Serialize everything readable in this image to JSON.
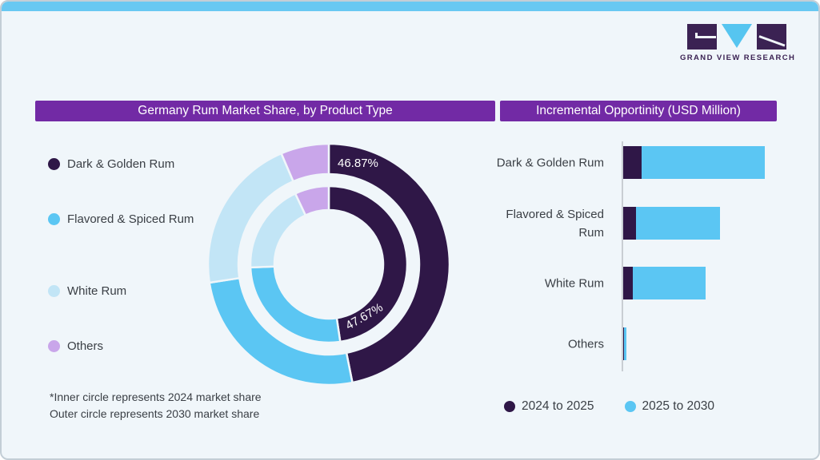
{
  "page": {
    "background": "#f0f6fa",
    "top_strip_color": "#68c8f2",
    "accent_purple": "#722aa5",
    "text_color": "#3a3f45"
  },
  "logo": {
    "text": "GRAND VIEW RESEARCH",
    "dark_color": "#3b2253",
    "blue_color": "#56c5f0"
  },
  "left_panel": {
    "title": "Germany Rum Market Share, by Product Type",
    "legend": [
      {
        "label": "Dark & Golden Rum",
        "color": "#2f1747"
      },
      {
        "label": "Flavored & Spiced Rum",
        "color": "#5bc6f3"
      },
      {
        "label": "White Rum",
        "color": "#c2e5f6"
      },
      {
        "label": "Others",
        "color": "#c9a6ea"
      }
    ],
    "donut_label_outer": "46.87%",
    "donut_label_inner": "47.67%",
    "footnote_line1": "*Inner circle represents 2024 market share",
    "footnote_line2": "Outer circle represents 2030 market share"
  },
  "right_panel": {
    "title": "Incremental Opportinity (USD Million)"
  },
  "chart_data": [
    {
      "type": "pie",
      "variant": "double-ring-donut",
      "title": "Germany Rum Market Share, by Product Type",
      "categories": [
        "Dark & Golden Rum",
        "Flavored & Spiced Rum",
        "White Rum",
        "Others"
      ],
      "colors": [
        "#2f1747",
        "#5bc6f3",
        "#c2e5f6",
        "#c9a6ea"
      ],
      "rings": [
        {
          "name": "2024 market share (inner circle)",
          "values": [
            47.67,
            26.7,
            18.6,
            7.03
          ]
        },
        {
          "name": "2030 market share (outer circle)",
          "values": [
            46.87,
            25.7,
            21.0,
            6.43
          ]
        }
      ],
      "shown_data_labels": {
        "outer_ring_dark_golden": "46.87%",
        "inner_ring_dark_golden": "47.67%"
      },
      "note": "Only Dark & Golden Rum shares are labeled in the image; remaining segment values estimated from arc angles"
    },
    {
      "type": "bar",
      "orientation": "horizontal",
      "stacked": true,
      "title": "Incremental Opportinity (USD Million)",
      "categories": [
        "Dark & Golden Rum",
        "Flavored & Spiced Rum",
        "White Rum",
        "Others"
      ],
      "categories_lines": [
        [
          "Dark & Golden Rum"
        ],
        [
          "Flavored & Spiced",
          "Rum"
        ],
        [
          "White Rum"
        ],
        [
          "Others"
        ]
      ],
      "series": [
        {
          "name": "2024 to 2025",
          "color": "#2f1747",
          "values": [
            23,
            16,
            12,
            0.5
          ]
        },
        {
          "name": "2025 to 2030",
          "color": "#5bc6f3",
          "values": [
            154,
            105,
            91,
            3
          ]
        }
      ],
      "value_axis_shown": false,
      "legend_position": "bottom",
      "note": "No numeric axis shown in image; values are relative estimates proportional to bar lengths"
    }
  ]
}
